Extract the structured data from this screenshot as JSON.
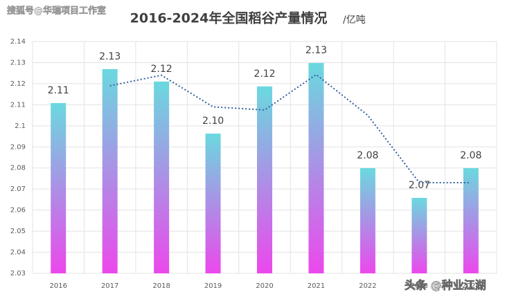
{
  "chart_data": {
    "type": "bar",
    "title": "2016-2024年全国稻谷产量情况",
    "unit": "/亿吨",
    "watermarks": [
      "搜狐号@华瑞项目工作室",
      "头条 @种业江湖"
    ],
    "categories": [
      "2016",
      "2017",
      "2018",
      "2019",
      "2020",
      "2021",
      "2022",
      "2023",
      "2024"
    ],
    "values": [
      2.1108,
      2.1269,
      2.121,
      2.0963,
      2.1187,
      2.1298,
      2.0799,
      2.0658,
      2.0799
    ],
    "value_labels": [
      "2.11",
      "2.13",
      "2.12",
      "2.10",
      "2.12",
      "2.13",
      "2.08",
      "2.07",
      "2.08"
    ],
    "trend_values": [
      null,
      2.119,
      2.124,
      2.109,
      2.1075,
      2.1243,
      2.105,
      2.073,
      2.073
    ],
    "color_top": "#6ad9df",
    "color_bottom": "#ec48ec",
    "trend_color": "#2e5f9e",
    "ylim": [
      2.03,
      2.14
    ],
    "yticks": [
      2.03,
      2.04,
      2.05,
      2.06,
      2.07,
      2.08,
      2.09,
      2.1,
      2.11,
      2.12,
      2.13,
      2.14
    ],
    "grid": true
  }
}
